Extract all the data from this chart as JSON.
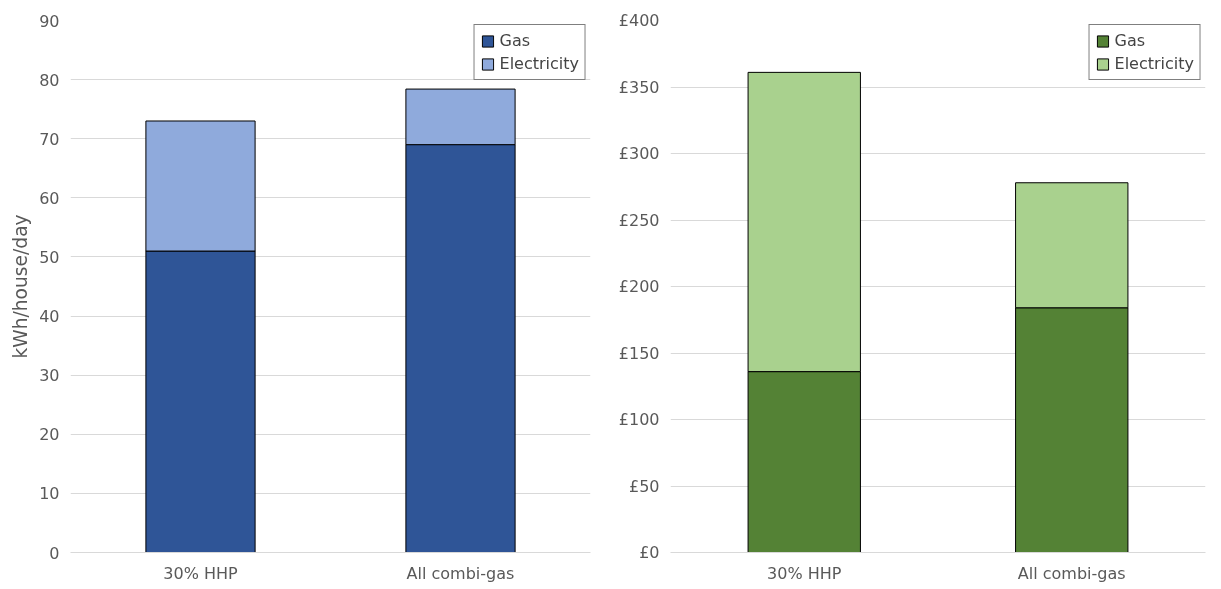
{
  "chart_data": [
    {
      "type": "bar",
      "stacked": true,
      "ylabel": "kWh/house/day",
      "categories": [
        "30% HHP",
        "All combi-gas"
      ],
      "series": [
        {
          "name": "Gas",
          "color": "#2f5597",
          "values": [
            51,
            69
          ]
        },
        {
          "name": "Electricity",
          "color": "#8faadc",
          "values": [
            22,
            9.4
          ]
        }
      ],
      "ylim": [
        0,
        90
      ],
      "yticks": [
        0,
        10,
        20,
        30,
        40,
        50,
        60,
        70,
        80,
        90
      ],
      "grid": "y",
      "legend": "top right"
    },
    {
      "type": "bar",
      "stacked": true,
      "categories": [
        "30% HHP",
        "All combi-gas"
      ],
      "series": [
        {
          "name": "Gas",
          "color": "#548235",
          "values": [
            136,
            184
          ]
        },
        {
          "name": "Electricity",
          "color": "#a9d18e",
          "values": [
            225,
            94
          ]
        }
      ],
      "ylim": [
        0,
        400
      ],
      "yticks": [
        {
          "value": 0,
          "label": "£0"
        },
        {
          "value": 50,
          "label": "£50"
        },
        {
          "value": 100,
          "label": "£100"
        },
        {
          "value": 150,
          "label": "£150"
        },
        {
          "value": 200,
          "label": "£200"
        },
        {
          "value": 250,
          "label": "£250"
        },
        {
          "value": 300,
          "label": "£300"
        },
        {
          "value": 350,
          "label": "£350"
        },
        {
          "value": 400,
          "label": "£400"
        }
      ],
      "grid": "y",
      "legend": "top right"
    }
  ]
}
